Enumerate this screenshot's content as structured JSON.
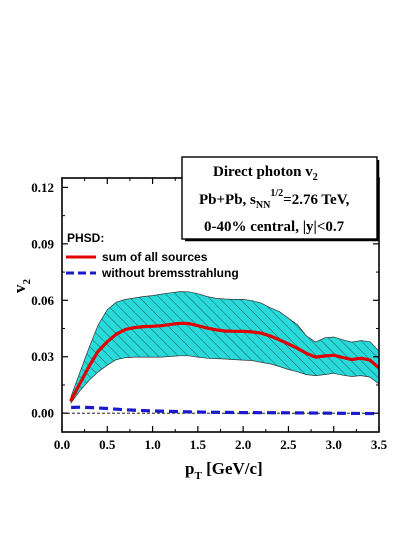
{
  "chart_data": {
    "type": "line",
    "xlabel": "p",
    "xlabel_sub": "T",
    "xlabel_unit": " [GeV/c]",
    "ylabel": "v",
    "ylabel_sub": "2",
    "xlim": [
      0.0,
      3.5
    ],
    "ylim": [
      -0.01,
      0.125
    ],
    "x_ticks": [
      "0.0",
      "0.5",
      "1.0",
      "1.5",
      "2.0",
      "2.5",
      "3.0",
      "3.5"
    ],
    "y_ticks": [
      "0.00",
      "0.03",
      "0.06",
      "0.09",
      "0.12"
    ],
    "annotation_box": {
      "line1": "Direct photon v",
      "line1_sub": "2",
      "line2_a": "Pb+Pb, s",
      "line2_sub": "NN",
      "line2_sup": "1/2",
      "line2_b": "=2.76 TeV,",
      "line3": "0-40% central, |y|<0.7"
    },
    "legend_title": "PHSD:",
    "zero_line": true,
    "series": [
      {
        "name": "sum of all sources",
        "color": "#e00000",
        "style": "solid",
        "x": [
          0.1,
          0.2,
          0.3,
          0.4,
          0.5,
          0.6,
          0.7,
          0.8,
          0.9,
          1.0,
          1.1,
          1.2,
          1.3,
          1.4,
          1.5,
          1.6,
          1.7,
          1.8,
          1.9,
          2.0,
          2.1,
          2.2,
          2.3,
          2.4,
          2.5,
          2.6,
          2.7,
          2.8,
          2.9,
          3.0,
          3.1,
          3.2,
          3.3,
          3.4,
          3.5
        ],
        "y": [
          0.007,
          0.016,
          0.025,
          0.033,
          0.038,
          0.042,
          0.0445,
          0.0455,
          0.046,
          0.0462,
          0.0465,
          0.0472,
          0.0478,
          0.0476,
          0.0465,
          0.0453,
          0.0443,
          0.0437,
          0.0435,
          0.0435,
          0.0432,
          0.0425,
          0.041,
          0.039,
          0.0368,
          0.0345,
          0.0318,
          0.0298,
          0.0304,
          0.0308,
          0.0296,
          0.0285,
          0.0292,
          0.0282,
          0.024
        ]
      },
      {
        "name": "without bremsstrahlung",
        "color": "#1a1acc",
        "style": "dashed",
        "x": [
          0.1,
          0.2,
          0.3,
          0.5,
          0.7,
          1.0,
          1.3,
          1.6,
          2.0,
          2.5,
          3.0,
          3.5
        ],
        "y": [
          0.003,
          0.0032,
          0.003,
          0.0025,
          0.0018,
          0.0012,
          0.0008,
          0.0005,
          0.0003,
          0.0002,
          0.0,
          -0.0002
        ]
      }
    ],
    "band": {
      "color": "#28dada",
      "hatch": true,
      "x": [
        0.1,
        0.2,
        0.3,
        0.4,
        0.5,
        0.6,
        0.7,
        0.8,
        0.9,
        1.0,
        1.1,
        1.2,
        1.3,
        1.4,
        1.5,
        1.6,
        1.7,
        1.8,
        1.9,
        2.0,
        2.1,
        2.2,
        2.3,
        2.4,
        2.5,
        2.6,
        2.7,
        2.8,
        2.9,
        3.0,
        3.1,
        3.2,
        3.3,
        3.4,
        3.5
      ],
      "upper": [
        0.009,
        0.022,
        0.035,
        0.047,
        0.055,
        0.059,
        0.0605,
        0.0612,
        0.062,
        0.0625,
        0.0633,
        0.064,
        0.0646,
        0.0645,
        0.0635,
        0.062,
        0.061,
        0.0607,
        0.0605,
        0.0605,
        0.0598,
        0.0585,
        0.056,
        0.054,
        0.0505,
        0.047,
        0.041,
        0.0378,
        0.04,
        0.0405,
        0.039,
        0.0378,
        0.0386,
        0.038,
        0.033
      ],
      "lower": [
        0.0055,
        0.012,
        0.0175,
        0.022,
        0.0255,
        0.0285,
        0.0295,
        0.0298,
        0.0298,
        0.0298,
        0.0298,
        0.0302,
        0.0305,
        0.0305,
        0.0298,
        0.0292,
        0.029,
        0.0288,
        0.0285,
        0.0282,
        0.028,
        0.027,
        0.0262,
        0.0248,
        0.0232,
        0.022,
        0.0205,
        0.02,
        0.0205,
        0.0212,
        0.0202,
        0.0195,
        0.02,
        0.0192,
        0.0155
      ]
    }
  }
}
